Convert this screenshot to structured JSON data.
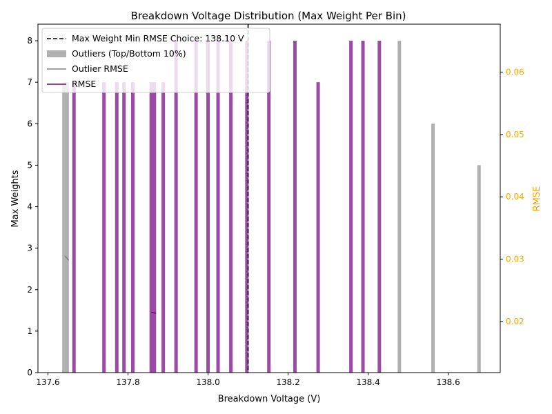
{
  "chart_data": {
    "type": "bar",
    "title": "Breakdown Voltage Distribution (Max Weight Per Bin)",
    "xlabel": "Breakdown Voltage (V)",
    "ylabel": "Max Weights",
    "y2label": "RMSE",
    "xlim": [
      137.575,
      138.73
    ],
    "ylim": [
      0,
      8.4
    ],
    "y2lim": [
      0.0118,
      0.0677
    ],
    "x_ticks": [
      "137.6",
      "137.8",
      "138.0",
      "138.2",
      "138.4",
      "138.6"
    ],
    "y_ticks": [
      "0",
      "1",
      "2",
      "3",
      "4",
      "5",
      "6",
      "7",
      "8"
    ],
    "y2_ticks": [
      "0.02",
      "0.03",
      "0.04",
      "0.05",
      "0.06"
    ],
    "colors": {
      "bars": "#9b4aa6",
      "outliers": "#b0b0b0",
      "rmse": "#800080",
      "outlier_rmse": "#808080",
      "choice_line": "#000000",
      "y2_axis": "#ffa500"
    },
    "legend_placement": "upper-left",
    "legend": [
      {
        "label": "Max Weight Min RMSE Choice: 138.10 V",
        "kind": "dashed"
      },
      {
        "label": "Outliers (Top/Bottom 10%)",
        "kind": "patch"
      },
      {
        "label": "Outlier RMSE",
        "kind": "line-gray"
      },
      {
        "label": "RMSE",
        "kind": "line-purple"
      }
    ],
    "choice_x": 138.1,
    "bars": [
      {
        "x": 137.64,
        "value": 7,
        "outlier": true
      },
      {
        "x": 137.648,
        "value": 7,
        "outlier": true
      },
      {
        "x": 137.665,
        "value": 7,
        "outlier": false
      },
      {
        "x": 137.74,
        "value": 7,
        "outlier": false
      },
      {
        "x": 137.772,
        "value": 7,
        "outlier": false
      },
      {
        "x": 137.79,
        "value": 7,
        "outlier": false
      },
      {
        "x": 137.812,
        "value": 7,
        "outlier": false
      },
      {
        "x": 137.858,
        "value": 7,
        "outlier": false
      },
      {
        "x": 137.866,
        "value": 7,
        "outlier": false
      },
      {
        "x": 137.888,
        "value": 7,
        "outlier": false
      },
      {
        "x": 137.92,
        "value": 8,
        "outlier": false
      },
      {
        "x": 137.97,
        "value": 8,
        "outlier": false
      },
      {
        "x": 138.0,
        "value": 8,
        "outlier": false
      },
      {
        "x": 138.025,
        "value": 8,
        "outlier": false
      },
      {
        "x": 138.057,
        "value": 8,
        "outlier": false
      },
      {
        "x": 138.097,
        "value": 8,
        "outlier": false
      },
      {
        "x": 138.152,
        "value": 8,
        "outlier": false
      },
      {
        "x": 138.217,
        "value": 8,
        "outlier": false
      },
      {
        "x": 138.275,
        "value": 7,
        "outlier": false
      },
      {
        "x": 138.357,
        "value": 8,
        "outlier": false
      },
      {
        "x": 138.387,
        "value": 8,
        "outlier": false
      },
      {
        "x": 138.428,
        "value": 8,
        "outlier": false
      },
      {
        "x": 138.478,
        "value": 8,
        "outlier": true
      },
      {
        "x": 138.562,
        "value": 6,
        "outlier": true
      },
      {
        "x": 138.677,
        "value": 5,
        "outlier": true
      }
    ],
    "outlier_rmse_segments": [
      [
        {
          "x": 137.643,
          "y": 0.0305
        },
        {
          "x": 137.652,
          "y": 0.0298
        }
      ]
    ],
    "rmse_segments": [
      [
        {
          "x": 137.858,
          "y": 0.0215
        },
        {
          "x": 137.87,
          "y": 0.0213
        }
      ]
    ]
  }
}
